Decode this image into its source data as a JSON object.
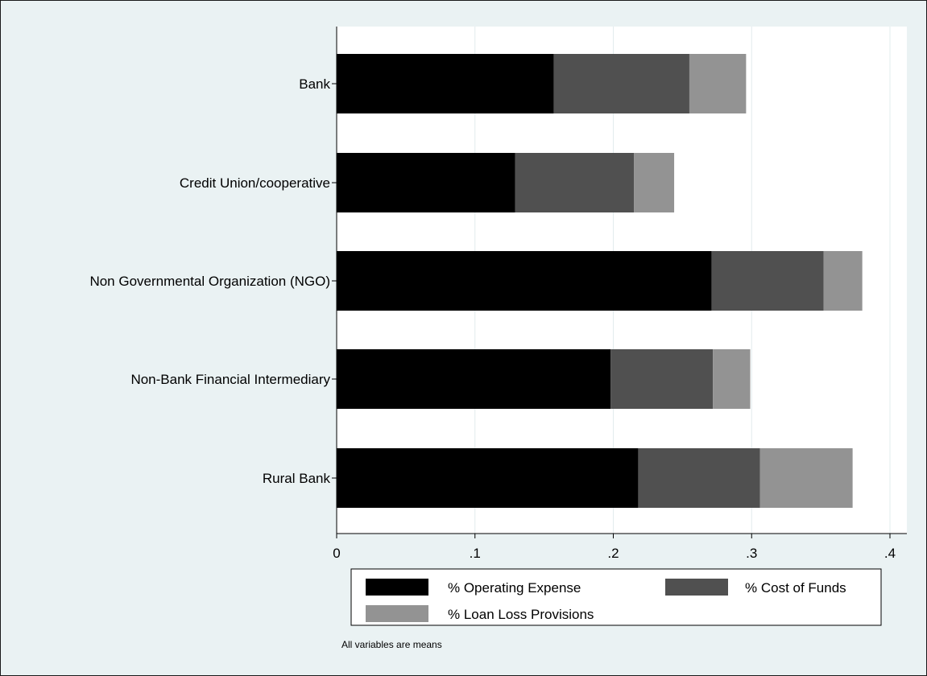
{
  "chart_data": {
    "type": "bar",
    "orientation": "horizontal",
    "stacked": true,
    "categories": [
      "Bank",
      "Credit Union/cooperative",
      "Non Governmental Organization (NGO)",
      "Non-Bank Financial Intermediary",
      "Rural Bank"
    ],
    "series": [
      {
        "name": "% Operating Expense",
        "values": [
          0.157,
          0.129,
          0.271,
          0.198,
          0.218
        ],
        "color": "#000000"
      },
      {
        "name": "% Cost of Funds",
        "values": [
          0.098,
          0.086,
          0.081,
          0.074,
          0.088
        ],
        "color": "#505050"
      },
      {
        "name": "% Loan Loss Provisions",
        "values": [
          0.041,
          0.029,
          0.028,
          0.027,
          0.067
        ],
        "color": "#939393"
      }
    ],
    "xlim": [
      0,
      0.4
    ],
    "xticks": [
      0,
      0.1,
      0.2,
      0.3,
      0.4
    ],
    "xtick_labels": [
      "0",
      ".1",
      ".2",
      ".3",
      ".4"
    ],
    "grid": true,
    "legend_position": "bottom",
    "note": "All variables are means",
    "plot_background": "#ffffff",
    "outer_background": "#eaf2f3",
    "grid_color": "#e2ecee"
  }
}
